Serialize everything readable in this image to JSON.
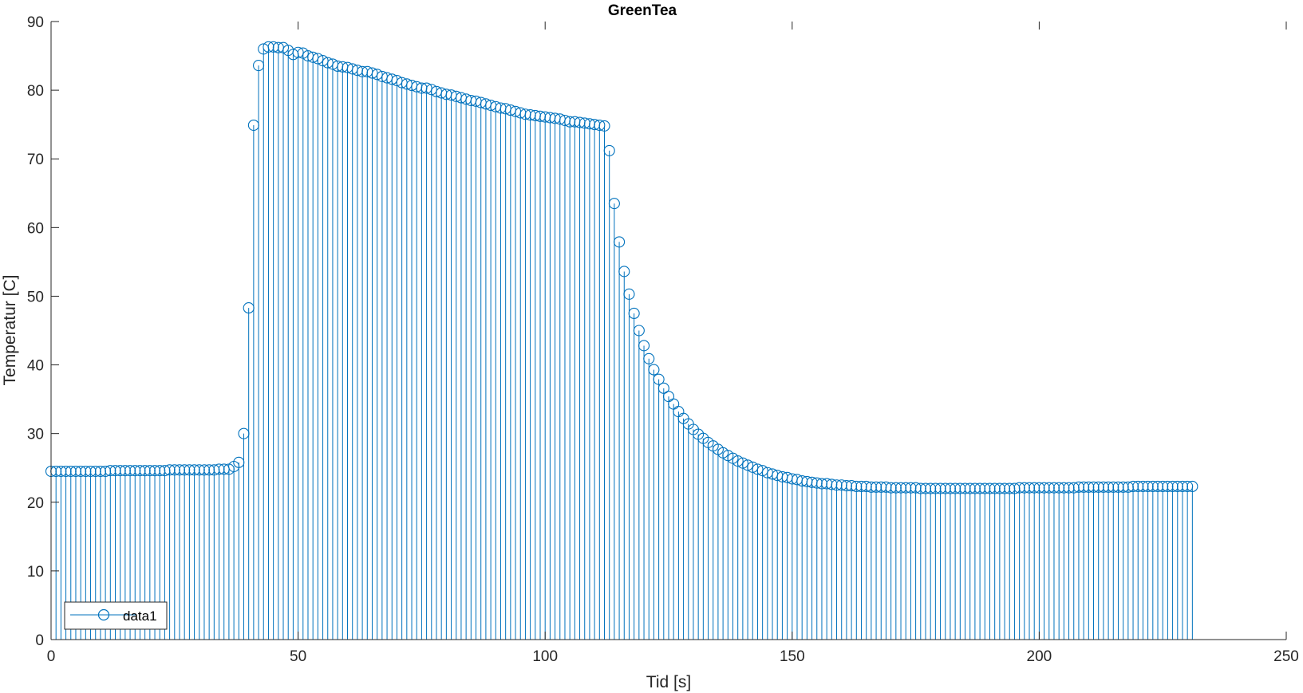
{
  "chart_data": {
    "type": "stem",
    "title": "GreenTea",
    "xlabel": "Tid [s]",
    "ylabel": "Temperatur [C]",
    "xlim": [
      0,
      250
    ],
    "ylim": [
      0,
      90
    ],
    "xticks": [
      0,
      50,
      100,
      150,
      200,
      250
    ],
    "yticks": [
      0,
      10,
      20,
      30,
      40,
      50,
      60,
      70,
      80,
      90
    ],
    "grid": false,
    "legend": {
      "position": "bottom-left",
      "entries": [
        "data1"
      ]
    },
    "series": [
      {
        "name": "data1",
        "color": "#0072BD",
        "marker": "circle",
        "x_start": 0,
        "x_step": 1,
        "values": [
          24.5,
          24.5,
          24.5,
          24.5,
          24.5,
          24.5,
          24.5,
          24.5,
          24.5,
          24.5,
          24.5,
          24.5,
          24.6,
          24.6,
          24.6,
          24.6,
          24.6,
          24.6,
          24.6,
          24.6,
          24.6,
          24.6,
          24.6,
          24.6,
          24.7,
          24.7,
          24.7,
          24.7,
          24.7,
          24.7,
          24.7,
          24.7,
          24.7,
          24.7,
          24.8,
          24.8,
          24.8,
          25.2,
          25.8,
          30.0,
          48.3,
          74.9,
          83.6,
          86.0,
          86.3,
          86.3,
          86.2,
          86.2,
          85.8,
          85.2,
          85.5,
          85.4,
          85.0,
          84.8,
          84.6,
          84.3,
          84.0,
          83.8,
          83.5,
          83.4,
          83.3,
          83.1,
          82.9,
          82.7,
          82.7,
          82.5,
          82.3,
          82.0,
          81.8,
          81.6,
          81.4,
          81.1,
          80.9,
          80.7,
          80.5,
          80.3,
          80.3,
          80.1,
          79.8,
          79.6,
          79.4,
          79.3,
          79.1,
          78.9,
          78.7,
          78.5,
          78.4,
          78.2,
          78.0,
          77.8,
          77.6,
          77.4,
          77.3,
          77.1,
          76.9,
          76.7,
          76.5,
          76.4,
          76.3,
          76.2,
          76.1,
          76.0,
          75.9,
          75.8,
          75.6,
          75.4,
          75.4,
          75.3,
          75.2,
          75.1,
          75.0,
          74.9,
          74.8,
          71.2,
          63.5,
          57.9,
          53.6,
          50.3,
          47.5,
          45.0,
          42.8,
          40.9,
          39.3,
          37.9,
          36.6,
          35.4,
          34.3,
          33.2,
          32.2,
          31.4,
          30.6,
          29.9,
          29.3,
          28.7,
          28.2,
          27.7,
          27.2,
          26.8,
          26.4,
          26.0,
          25.7,
          25.4,
          25.1,
          24.8,
          24.6,
          24.3,
          24.1,
          23.9,
          23.7,
          23.6,
          23.4,
          23.3,
          23.1,
          23.0,
          22.9,
          22.8,
          22.7,
          22.7,
          22.6,
          22.5,
          22.5,
          22.4,
          22.4,
          22.3,
          22.3,
          22.3,
          22.2,
          22.2,
          22.2,
          22.2,
          22.1,
          22.1,
          22.1,
          22.1,
          22.1,
          22.1,
          22.0,
          22.0,
          22.0,
          22.0,
          22.0,
          22.0,
          22.0,
          22.0,
          22.0,
          22.0,
          22.0,
          22.0,
          22.0,
          22.0,
          22.0,
          22.0,
          22.0,
          22.0,
          22.0,
          22.0,
          22.1,
          22.1,
          22.1,
          22.1,
          22.1,
          22.1,
          22.1,
          22.1,
          22.1,
          22.1,
          22.1,
          22.1,
          22.2,
          22.2,
          22.2,
          22.2,
          22.2,
          22.2,
          22.2,
          22.2,
          22.2,
          22.2,
          22.2,
          22.3,
          22.3,
          22.3,
          22.3,
          22.3,
          22.3,
          22.3,
          22.3,
          22.3,
          22.3,
          22.3,
          22.3,
          22.3
        ]
      }
    ]
  }
}
